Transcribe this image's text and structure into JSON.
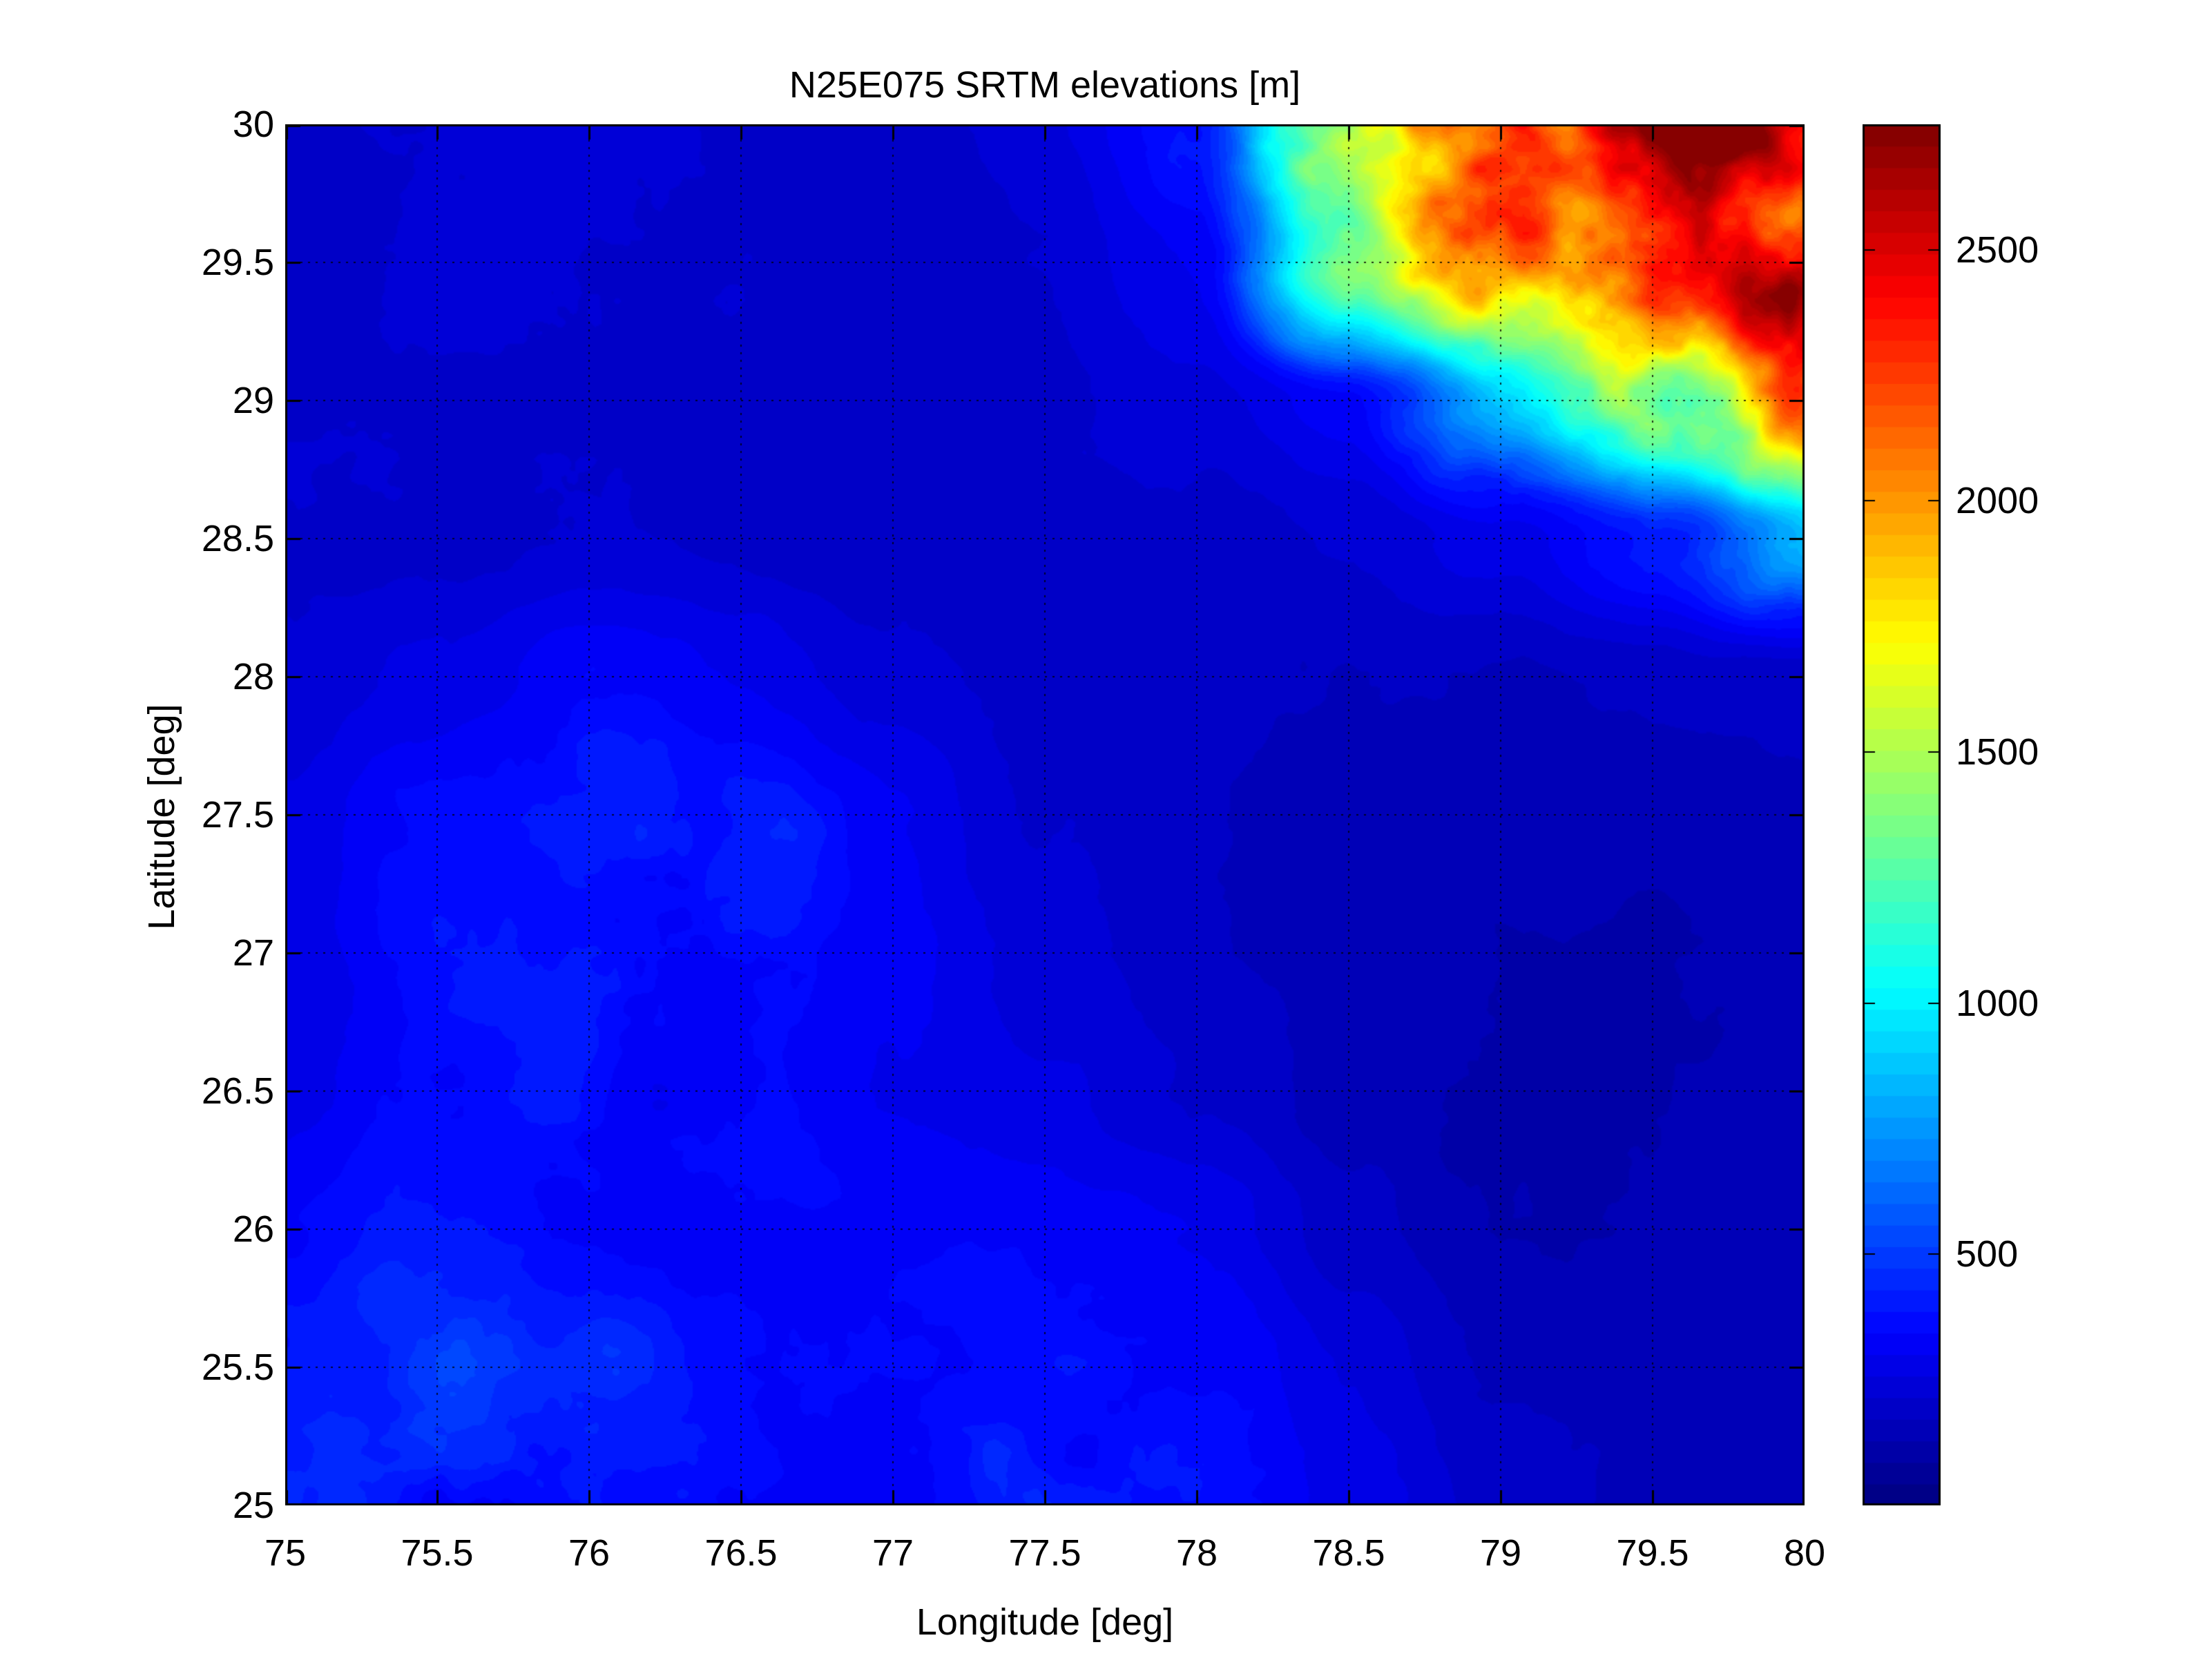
{
  "figure": {
    "title": "N25E075 SRTM elevations [m]",
    "background_color": "#ffffff",
    "text_color": "#000000"
  },
  "axes": {
    "xlabel": "Longitude [deg]",
    "ylabel": "Latitude [deg]",
    "xlim": [
      75,
      80
    ],
    "ylim": [
      25,
      30
    ],
    "xticks": [
      75,
      75.5,
      76,
      76.5,
      77,
      77.5,
      78,
      78.5,
      79,
      79.5,
      80
    ],
    "xtick_labels": [
      "75",
      "75.5",
      "76",
      "76.5",
      "77",
      "77.5",
      "78",
      "78.5",
      "79",
      "79.5",
      "80"
    ],
    "yticks": [
      25,
      25.5,
      26,
      26.5,
      27,
      27.5,
      28,
      28.5,
      29,
      29.5,
      30
    ],
    "ytick_labels": [
      "25",
      "25.5",
      "26",
      "26.5",
      "27",
      "27.5",
      "28",
      "28.5",
      "29",
      "29.5",
      "30"
    ],
    "grid_style": "dotted",
    "grid_color": "#000000",
    "box_color": "#000000"
  },
  "colorbar": {
    "vmin": 0,
    "vmax": 2750,
    "ticks": [
      500,
      1000,
      1500,
      2000,
      2500
    ],
    "tick_labels": [
      "500",
      "1000",
      "1500",
      "2000",
      "2500"
    ],
    "levels": 64,
    "colormap": "jet"
  },
  "chart_data": {
    "type": "heatmap",
    "title": "N25E075 SRTM elevations [m]",
    "xlabel": "Longitude [deg]",
    "ylabel": "Latitude [deg]",
    "x_range": [
      75,
      80
    ],
    "y_range": [
      25,
      30
    ],
    "value_unit": "m",
    "value_range": [
      0,
      2750
    ],
    "colormap": "jet",
    "legend_position": "right-colorbar",
    "grid_on": true,
    "grid_lon": [
      75,
      75.5,
      76,
      76.5,
      77,
      77.5,
      78,
      78.5,
      79,
      79.5,
      80
    ],
    "grid_lat": [
      30,
      29.5,
      29,
      28.5,
      28,
      27.5,
      27,
      26.5,
      26,
      25.5,
      25
    ],
    "elevation_grid_comment": "rows ordered north(30) to south(25); coarse SRTM elevations in meters; Himalayan front crosses top-right corner, Aravalli hills at left-center, Gangetic plains (dark) east and north-center",
    "elevation_grid": [
      [
        215,
        220,
        225,
        215,
        205,
        250,
        400,
        2000,
        2200,
        2300,
        2500
      ],
      [
        210,
        215,
        220,
        210,
        200,
        220,
        300,
        1100,
        2000,
        2150,
        2300
      ],
      [
        205,
        210,
        215,
        205,
        195,
        205,
        235,
        320,
        900,
        1500,
        2000
      ],
      [
        200,
        210,
        215,
        205,
        190,
        185,
        200,
        215,
        280,
        420,
        800
      ],
      [
        230,
        280,
        330,
        300,
        230,
        195,
        185,
        175,
        165,
        170,
        185
      ],
      [
        260,
        350,
        430,
        400,
        300,
        210,
        175,
        150,
        140,
        145,
        155
      ],
      [
        270,
        380,
        450,
        420,
        310,
        220,
        170,
        140,
        130,
        135,
        145
      ],
      [
        280,
        350,
        400,
        360,
        300,
        250,
        200,
        150,
        125,
        130,
        140
      ],
      [
        320,
        380,
        360,
        330,
        320,
        330,
        290,
        200,
        140,
        135,
        145
      ],
      [
        380,
        420,
        400,
        350,
        360,
        400,
        380,
        260,
        170,
        150,
        155
      ],
      [
        450,
        450,
        420,
        380,
        390,
        430,
        420,
        300,
        200,
        160,
        160
      ]
    ]
  }
}
